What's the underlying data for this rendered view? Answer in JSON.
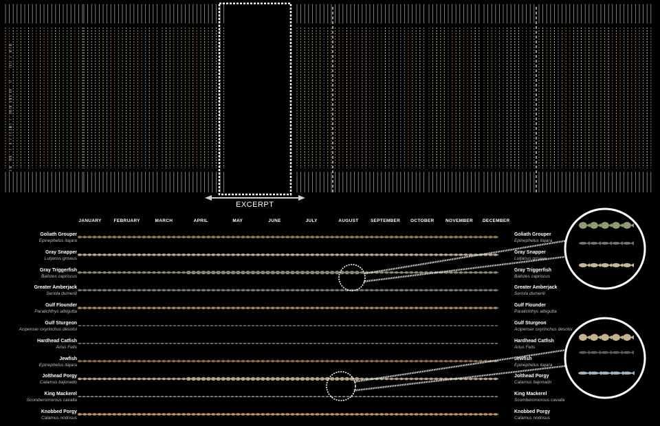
{
  "excerpt_label": "EXCERPT",
  "months": [
    "JANUARY",
    "FEBRUARY",
    "MARCH",
    "APRIL",
    "MAY",
    "JUNE",
    "JULY",
    "AUGUST",
    "SEPTEMBER",
    "OCTOBER",
    "NOVEMBER",
    "DECEMBER"
  ],
  "species": [
    {
      "common": "Goliath Grouper",
      "scientific": "Epinephelus itajara",
      "color": "#b08a5a"
    },
    {
      "common": "Gray Snapper",
      "scientific": "Lutjanus griseus",
      "color": "#c9b79a"
    },
    {
      "common": "Gray Triggerfish",
      "scientific": "Balistes capriscus",
      "color": "#8e9a78"
    },
    {
      "common": "Greater Amberjack",
      "scientific": "Seriola dumerili",
      "color": "#7b7f86"
    },
    {
      "common": "Gulf Flounder",
      "scientific": "Paralichthys albigutta",
      "color": "#b5925e"
    },
    {
      "common": "Gulf Sturgeon",
      "scientific": "Acipenser oxyrinchus desotoi",
      "color": "#8a8a8a"
    },
    {
      "common": "Hardhead Catfish",
      "scientific": "Arius Felis",
      "color": "#9a9a9a"
    },
    {
      "common": "Jewfish",
      "scientific": "Epinephelus itajara",
      "color": "#9b7350"
    },
    {
      "common": "Jolthead Porgy",
      "scientific": "Calamus bajonado",
      "color": "#c7b48f"
    },
    {
      "common": "King Mackerel",
      "scientific": "Scomberomorous cavalla",
      "color": "#9fb2c6"
    },
    {
      "common": "Knobbed Porgy",
      "scientific": "Calamus nodosus",
      "color": "#d1a668"
    }
  ],
  "colors": {
    "background": "#000000",
    "text": "#ffffff",
    "sub_text": "#bdbdbd",
    "excerpt_box": "#ffffff"
  }
}
